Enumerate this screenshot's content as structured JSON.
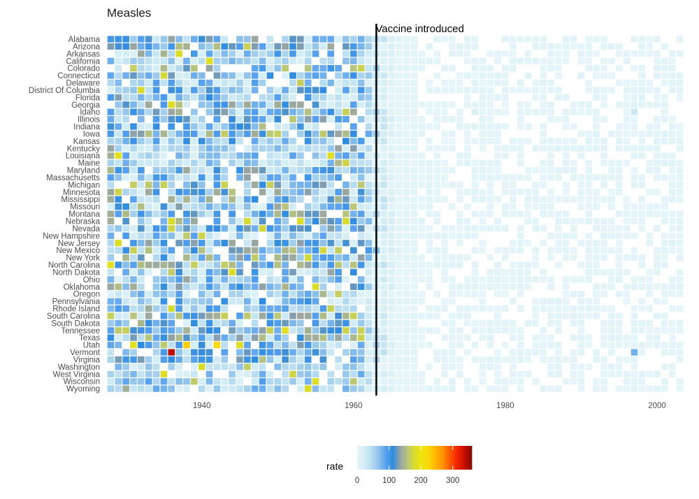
{
  "chart_data": {
    "type": "heatmap",
    "title": "Measles",
    "xlabel": "",
    "ylabel": "",
    "x_range": [
      1928,
      2003
    ],
    "x_ticks": [
      1940,
      1960,
      1980,
      2000
    ],
    "states": [
      "Alabama",
      "Arizona",
      "Arkansas",
      "California",
      "Colorado",
      "Connecticut",
      "Delaware",
      "District Of Columbia",
      "Florida",
      "Georgia",
      "Idaho",
      "Illinois",
      "Indiana",
      "Iowa",
      "Kansas",
      "Kentucky",
      "Louisiana",
      "Maine",
      "Maryland",
      "Massachusetts",
      "Michigan",
      "Minnesota",
      "Mississippi",
      "Missouri",
      "Montana",
      "Nebraska",
      "Nevada",
      "New Hampshire",
      "New Jersey",
      "New Mexico",
      "New York",
      "North Carolina",
      "North Dakota",
      "Ohio",
      "Oklahoma",
      "Oregon",
      "Pennsylvania",
      "Rhode Island",
      "South Carolina",
      "South Dakota",
      "Tennessee",
      "Texas",
      "Utah",
      "Vermont",
      "Virginia",
      "Washington",
      "West Virginia",
      "Wisconsin",
      "Wyoming"
    ],
    "annotation": {
      "label": "Vaccine introduced",
      "year": 1963
    },
    "notable_values": [
      {
        "state": "Vermont",
        "year": 1936,
        "rate": 340
      },
      {
        "state": "Utah",
        "year": 1938,
        "rate": 230
      },
      {
        "state": "Utah",
        "year": 1942,
        "rate": 220
      },
      {
        "state": "North Carolina",
        "year": 1928,
        "rate": 190
      },
      {
        "state": "Idaho",
        "year": 1976,
        "rate": 15
      },
      {
        "state": "Idaho",
        "year": 1997,
        "rate": 30
      },
      {
        "state": "Vermont",
        "year": 1997,
        "rate": 80
      }
    ],
    "legend": {
      "title": "rate",
      "ticks": [
        0,
        100,
        200,
        300
      ],
      "range": [
        0,
        360
      ],
      "colors": [
        "#e5f5f9",
        "#d4eef5",
        "#b7dcf0",
        "#90c3eb",
        "#56a0ef",
        "#2f8ce0",
        "#96a3a5",
        "#b8c67d",
        "#d8dc2b",
        "#f0e50c",
        "#fbd70a",
        "#ffb300",
        "#ff9000",
        "#ff5500",
        "#ef2400",
        "#c70c00",
        "#800d00"
      ]
    }
  }
}
